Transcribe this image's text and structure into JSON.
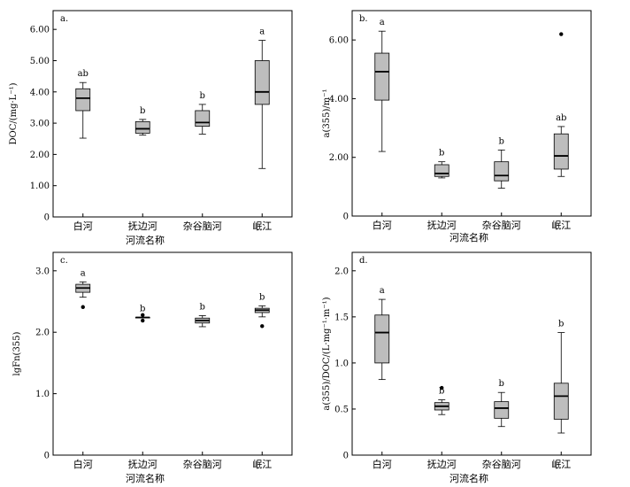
{
  "figure": {
    "x_title": "河流名称"
  },
  "chart_data": [
    {
      "type": "box",
      "panel": "a.",
      "ylabel": "DOC/(mg·L⁻¹)",
      "ylim": [
        0,
        6.6
      ],
      "yticks": [
        0,
        1.0,
        2.0,
        3.0,
        4.0,
        5.0,
        6.0
      ],
      "ytick_labels": [
        "0",
        "1.00",
        "2.00",
        "3.00",
        "4.00",
        "5.00",
        "6.00"
      ],
      "xlabel": "河流名称",
      "categories": [
        "白河",
        "抚边河",
        "杂谷脑河",
        "岷江"
      ],
      "boxes": [
        {
          "whisker_low": 2.52,
          "q1": 3.4,
          "median": 3.8,
          "q3": 4.1,
          "whisker_high": 4.3,
          "outliers": [],
          "letter": "ab"
        },
        {
          "whisker_low": 2.62,
          "q1": 2.68,
          "median": 2.82,
          "q3": 3.05,
          "whisker_high": 3.12,
          "outliers": [],
          "letter": "b"
        },
        {
          "whisker_low": 2.65,
          "q1": 2.9,
          "median": 3.02,
          "q3": 3.4,
          "whisker_high": 3.6,
          "outliers": [],
          "letter": "b"
        },
        {
          "whisker_low": 1.55,
          "q1": 3.6,
          "median": 4.0,
          "q3": 5.0,
          "whisker_high": 5.65,
          "outliers": [],
          "letter": "a"
        }
      ]
    },
    {
      "type": "box",
      "panel": "b.",
      "ylabel": "a(355)/m⁻¹",
      "ylim": [
        0,
        7.0
      ],
      "yticks": [
        0,
        2.0,
        4.0,
        6.0
      ],
      "ytick_labels": [
        "0",
        "2.00",
        "4.00",
        "6.00"
      ],
      "xlabel": "河流名称",
      "categories": [
        "白河",
        "抚边河",
        "杂谷脑河",
        "岷江"
      ],
      "boxes": [
        {
          "whisker_low": 2.2,
          "q1": 3.95,
          "median": 4.92,
          "q3": 5.55,
          "whisker_high": 6.3,
          "outliers": [],
          "letter": "a"
        },
        {
          "whisker_low": 1.3,
          "q1": 1.35,
          "median": 1.45,
          "q3": 1.75,
          "whisker_high": 1.85,
          "outliers": [],
          "letter": "b"
        },
        {
          "whisker_low": 0.95,
          "q1": 1.2,
          "median": 1.38,
          "q3": 1.85,
          "whisker_high": 2.25,
          "outliers": [],
          "letter": "b"
        },
        {
          "whisker_low": 1.35,
          "q1": 1.6,
          "median": 2.05,
          "q3": 2.8,
          "whisker_high": 3.05,
          "outliers": [
            6.2
          ],
          "letter": "ab"
        }
      ]
    },
    {
      "type": "box",
      "panel": "c.",
      "ylabel": "lgFn(355)",
      "ylim": [
        0,
        3.3
      ],
      "yticks": [
        0,
        1.0,
        2.0,
        3.0
      ],
      "ytick_labels": [
        "0",
        "1.0",
        "2.0",
        "3.0"
      ],
      "xlabel": "河流名称",
      "categories": [
        "白河",
        "抚边河",
        "杂谷脑河",
        "岷江"
      ],
      "boxes": [
        {
          "whisker_low": 2.57,
          "q1": 2.65,
          "median": 2.72,
          "q3": 2.78,
          "whisker_high": 2.82,
          "outliers": [
            2.41
          ],
          "letter": "a"
        },
        {
          "whisker_low": 2.24,
          "q1": 2.24,
          "median": 2.24,
          "q3": 2.24,
          "whisker_high": 2.24,
          "outliers": [
            2.19,
            2.28
          ],
          "letter": "b"
        },
        {
          "whisker_low": 2.09,
          "q1": 2.15,
          "median": 2.19,
          "q3": 2.23,
          "whisker_high": 2.27,
          "outliers": [],
          "letter": "b"
        },
        {
          "whisker_low": 2.25,
          "q1": 2.32,
          "median": 2.36,
          "q3": 2.39,
          "whisker_high": 2.43,
          "outliers": [
            2.1
          ],
          "letter": "b"
        }
      ]
    },
    {
      "type": "box",
      "panel": "d.",
      "ylabel": "a(355)/DOC/(L·mg⁻¹·m⁻¹)",
      "ylim": [
        0,
        2.2
      ],
      "yticks": [
        0,
        0.5,
        1.0,
        1.5,
        2.0
      ],
      "ytick_labels": [
        "0",
        "0.5",
        "1.0",
        "1.5",
        "2.0"
      ],
      "xlabel": "河流名称",
      "categories": [
        "白河",
        "抚边河",
        "杂谷脑河",
        "岷江"
      ],
      "boxes": [
        {
          "whisker_low": 0.82,
          "q1": 1.0,
          "median": 1.33,
          "q3": 1.52,
          "whisker_high": 1.69,
          "outliers": [],
          "letter": "a"
        },
        {
          "whisker_low": 0.44,
          "q1": 0.49,
          "median": 0.53,
          "q3": 0.57,
          "whisker_high": 0.6,
          "outliers": [
            0.73
          ],
          "letter": "b"
        },
        {
          "whisker_low": 0.31,
          "q1": 0.4,
          "median": 0.51,
          "q3": 0.58,
          "whisker_high": 0.68,
          "outliers": [],
          "letter": "b"
        },
        {
          "whisker_low": 0.24,
          "q1": 0.39,
          "median": 0.64,
          "q3": 0.78,
          "whisker_high": 1.33,
          "outliers": [],
          "letter": "b"
        }
      ]
    }
  ]
}
